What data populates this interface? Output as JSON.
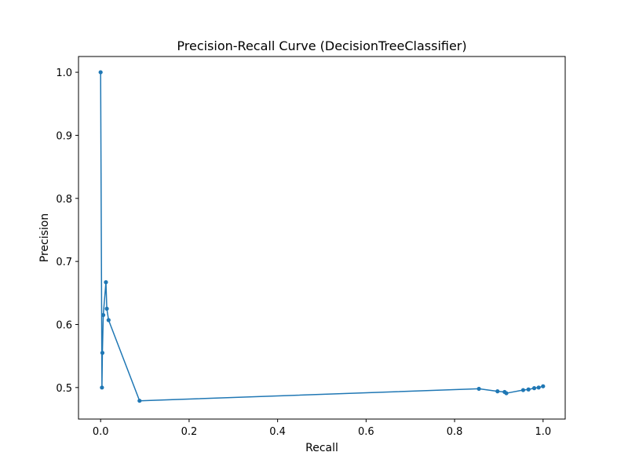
{
  "chart_data": {
    "type": "line",
    "title": "Precision-Recall Curve (DecisionTreeClassifier)",
    "xlabel": "Recall",
    "ylabel": "Precision",
    "xlim": [
      -0.05,
      1.05
    ],
    "ylim": [
      0.45,
      1.025
    ],
    "xticks": [
      0.0,
      0.2,
      0.4,
      0.6,
      0.8,
      1.0
    ],
    "xtick_labels": [
      "0.0",
      "0.2",
      "0.4",
      "0.6",
      "0.8",
      "1.0"
    ],
    "yticks": [
      0.5,
      0.6,
      0.7,
      0.8,
      0.9,
      1.0
    ],
    "ytick_labels": [
      "0.5",
      "0.6",
      "0.7",
      "0.8",
      "0.9",
      "1.0"
    ],
    "grid": false,
    "legend": "none",
    "series": [
      {
        "color": "#1f77b4",
        "marker": "circle",
        "x": [
          0.0,
          0.003,
          0.004,
          0.006,
          0.012,
          0.014,
          0.018,
          0.088,
          0.855,
          0.897,
          0.913,
          0.917,
          0.955,
          0.967,
          0.98,
          0.99,
          1.0
        ],
        "y": [
          1.0,
          0.5,
          0.555,
          0.615,
          0.667,
          0.625,
          0.607,
          0.479,
          0.498,
          0.494,
          0.493,
          0.491,
          0.496,
          0.497,
          0.499,
          0.5,
          0.502
        ]
      }
    ]
  }
}
